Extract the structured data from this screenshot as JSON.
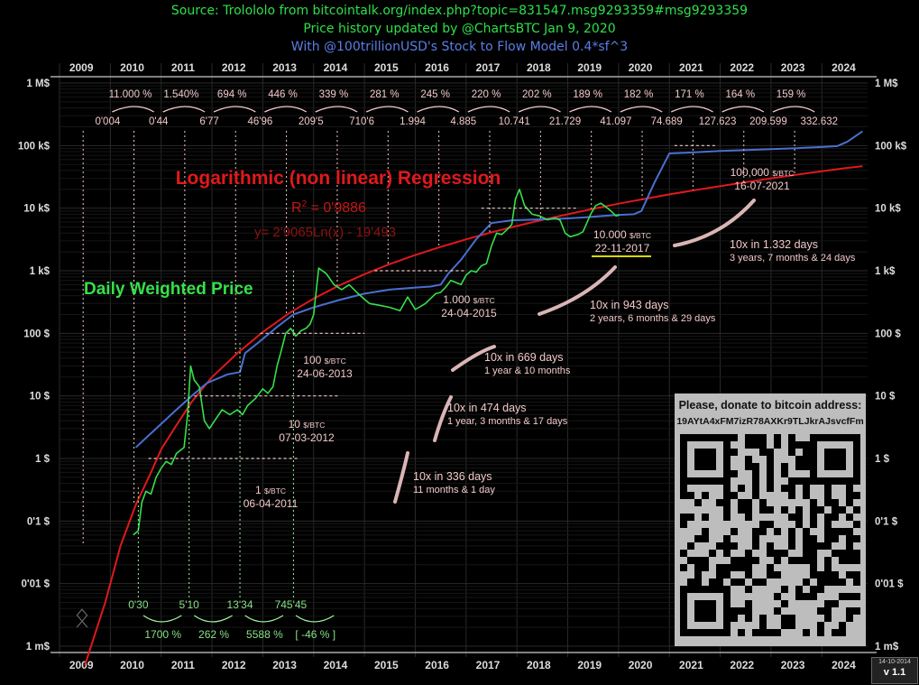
{
  "header": {
    "line1": "Source: Trolololo from bitcointalk.org/index.php?topic=831547.msg9293359#msg9293359",
    "line2": "Price history updated by @ChartsBTC        Jan 9, 2020",
    "line3": "With @100trillionUSD's Stock to Flow Model 0.4*sf^3"
  },
  "colors": {
    "header_green": "#2de04a",
    "header_blue": "#5a7ee8",
    "regression": "#e0191c",
    "weighted": "#4a6fd0",
    "price": "#36e04a",
    "annotation": "#f2c9c9",
    "grid": "#2a2a2a"
  },
  "chart_data": {
    "type": "line",
    "title": "Logarithmic (non linear) Regression",
    "yscale": "log",
    "ylim": [
      0.001,
      1000000
    ],
    "xlim": [
      2009.0,
      2024.9
    ],
    "x_ticks": [
      "2009",
      "2010",
      "2011",
      "2012",
      "2013",
      "2014",
      "2015",
      "2016",
      "2017",
      "2018",
      "2019",
      "2020",
      "2021",
      "2022",
      "2023",
      "2024"
    ],
    "y_ticks": [
      {
        "value": 1000000,
        "label": "1 M$"
      },
      {
        "value": 100000,
        "label": "100 k$"
      },
      {
        "value": 10000,
        "label": "10 k$"
      },
      {
        "value": 1000,
        "label": "1 k$"
      },
      {
        "value": 100,
        "label": "100 $"
      },
      {
        "value": 10,
        "label": "10 $"
      },
      {
        "value": 1,
        "label": "1 $"
      },
      {
        "value": 0.1,
        "label": "0'1 $"
      },
      {
        "value": 0.01,
        "label": "0'01 $"
      },
      {
        "value": 0.001,
        "label": "1 m$"
      }
    ],
    "regression_label": "Logarithmic (non linear) Regression",
    "r2_label": "R",
    "r2_sup": "2",
    "r2_value": " = 0'9886",
    "formula": "y= 2'9065Ln(x) - 19'493",
    "price_label": "Daily Weighted Price",
    "series": [
      {
        "name": "Logarithmic (non linear) Regression",
        "color": "#e0191c",
        "x": [
          2009.5,
          2009.9,
          2010.2,
          2010.5,
          2010.8,
          2011.0,
          2011.3,
          2011.6,
          2012.0,
          2012.5,
          2013.0,
          2013.5,
          2014.0,
          2014.5,
          2015.0,
          2015.5,
          2016.0,
          2016.5,
          2017.0,
          2017.5,
          2018.0,
          2018.5,
          2019.0,
          2019.5,
          2020.0,
          2020.5,
          2021.0,
          2021.5,
          2022.0,
          2022.5,
          2023.0,
          2023.5,
          2024.0,
          2024.4,
          2024.8
        ],
        "y": [
          0.0005,
          0.005,
          0.04,
          0.18,
          0.6,
          1.4,
          3.4,
          8,
          20,
          48,
          105,
          205,
          360,
          580,
          880,
          1280,
          1780,
          2400,
          3180,
          4120,
          5200,
          6500,
          8000,
          9750,
          11800,
          14000,
          16600,
          19400,
          22500,
          26000,
          30000,
          34300,
          39000,
          43000,
          47000
        ]
      },
      {
        "name": "Stock to Flow Model",
        "color": "#4a6fd0",
        "x": [
          2010.5,
          2010.9,
          2011.3,
          2011.6,
          2011.9,
          2012.3,
          2012.55,
          2012.65,
          2012.9,
          2013.3,
          2013.6,
          2014.0,
          2014.5,
          2015.0,
          2015.5,
          2016.0,
          2016.3,
          2016.5,
          2016.65,
          2016.9,
          2017.2,
          2017.5,
          2017.9,
          2018.4,
          2018.9,
          2019.3,
          2019.7,
          2020.0,
          2020.3,
          2020.45,
          2020.7,
          2021.0,
          2021.5,
          2022.0,
          2022.5,
          2023.0,
          2023.5,
          2024.0,
          2024.3,
          2024.5,
          2024.8
        ],
        "y": [
          1.5,
          3,
          6,
          10,
          16,
          22,
          24,
          48,
          70,
          130,
          200,
          260,
          340,
          430,
          500,
          540,
          560,
          600,
          900,
          1500,
          3200,
          5800,
          6400,
          6600,
          6800,
          7100,
          7500,
          7800,
          8000,
          9000,
          25000,
          75000,
          78000,
          82000,
          85000,
          88000,
          91000,
          95000,
          98000,
          115000,
          170000
        ]
      },
      {
        "name": "Daily Weighted Price",
        "color": "#36e04a",
        "x": [
          2010.45,
          2010.55,
          2010.62,
          2010.7,
          2010.8,
          2010.9,
          2011.0,
          2011.1,
          2011.2,
          2011.3,
          2011.45,
          2011.52,
          2011.58,
          2011.65,
          2011.75,
          2011.85,
          2011.95,
          2012.05,
          2012.2,
          2012.35,
          2012.5,
          2012.6,
          2012.7,
          2012.85,
          2013.0,
          2013.1,
          2013.2,
          2013.28,
          2013.35,
          2013.45,
          2013.55,
          2013.65,
          2013.75,
          2013.85,
          2013.93,
          2014.0,
          2014.1,
          2014.25,
          2014.4,
          2014.55,
          2014.7,
          2014.85,
          2015.0,
          2015.1,
          2015.3,
          2015.5,
          2015.7,
          2015.85,
          2016.0,
          2016.2,
          2016.4,
          2016.5,
          2016.6,
          2016.7,
          2016.8,
          2016.9,
          2017.0,
          2017.1,
          2017.2,
          2017.3,
          2017.4,
          2017.5,
          2017.6,
          2017.7,
          2017.8,
          2017.9,
          2017.97,
          2018.05,
          2018.15,
          2018.3,
          2018.45,
          2018.6,
          2018.75,
          2018.85,
          2018.95,
          2019.05,
          2019.2,
          2019.3,
          2019.45,
          2019.55,
          2019.65,
          2019.75,
          2019.85,
          2019.95,
          2020.02
        ],
        "y": [
          0.06,
          0.07,
          0.2,
          0.3,
          0.27,
          0.5,
          0.7,
          0.9,
          0.8,
          1.2,
          1.5,
          5,
          30,
          18,
          14,
          4,
          3,
          4,
          6,
          5,
          6,
          5,
          7,
          9,
          13,
          11,
          14,
          30,
          48,
          100,
          120,
          90,
          110,
          120,
          140,
          200,
          1100,
          900,
          600,
          500,
          600,
          450,
          350,
          300,
          280,
          260,
          230,
          380,
          240,
          300,
          430,
          450,
          550,
          700,
          650,
          600,
          850,
          1000,
          950,
          1200,
          1300,
          2500,
          4000,
          3800,
          4500,
          5500,
          14000,
          20000,
          11000,
          8000,
          7500,
          6500,
          7000,
          6400,
          4000,
          3500,
          3800,
          4200,
          8000,
          11000,
          12000,
          10500,
          9000,
          7500,
          7800
        ]
      }
    ],
    "top_percent": [
      "11.000 %",
      "1.540%",
      "694 %",
      "446 %",
      "339 %",
      "281 %",
      "245 %",
      "220 %",
      "202 %",
      "189 %",
      "182 %",
      "171 %",
      "164 %",
      "159 %"
    ],
    "top_prices": [
      "0'004",
      "0'44",
      "6'77",
      "46'96",
      "209'5",
      "710'6",
      "1.994",
      "4.885",
      "10.741",
      "21.729",
      "41.097",
      "74.689",
      "127.623",
      "209.599",
      "332.632"
    ],
    "bottom_prices": [
      "0'30",
      "5'10",
      "13'34",
      "745'45"
    ],
    "bottom_percent": [
      "1700 %",
      "262 %",
      "5588 %",
      "[ -46 % ]"
    ],
    "milestones": [
      {
        "price": "1",
        "unit": "$/BTC",
        "date": "06-04-2011"
      },
      {
        "price": "10",
        "unit": "$/BTC",
        "date": "07-03-2012"
      },
      {
        "price": "100",
        "unit": "$/BTC",
        "date": "24-06-2013"
      },
      {
        "price": "1.000",
        "unit": "$/BTC",
        "date": "24-04-2015"
      },
      {
        "price": "10.000",
        "unit": "$/BTC",
        "date": "22-11-2017"
      },
      {
        "price": "100,000",
        "unit": "$/BTC",
        "date": "16-07-2021"
      }
    ],
    "periods": [
      {
        "title": "10x in 336 days",
        "detail": "11 months & 1 day"
      },
      {
        "title": "10x in 474 days",
        "detail": "1 year, 3 months & 17 days"
      },
      {
        "title": "10x in 669 days",
        "detail": "1 year & 10 months"
      },
      {
        "title": "10x in 943 days",
        "detail": "2 years, 6 months & 29 days"
      },
      {
        "title": "10x  in 1.332 days",
        "detail": "3 years, 7 months & 24 days"
      }
    ]
  },
  "donation": {
    "title": "Please, donate to bitcoin address:",
    "address": "19AYtA4xFM7izR78AXKr9TLJkrAJsvcfFm"
  },
  "version": {
    "date": "14-10-2014",
    "label": "v 1.1"
  }
}
